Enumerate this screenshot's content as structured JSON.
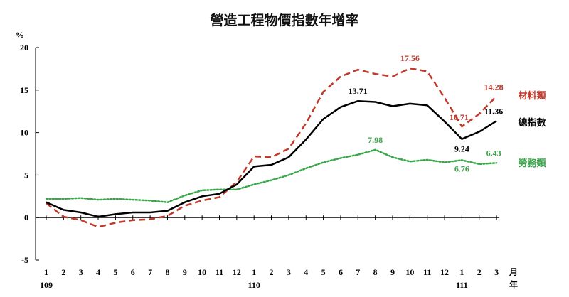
{
  "chart_data": {
    "type": "line",
    "title": "營造工程物價指數年增率",
    "ylabel": "%",
    "xlabel_unit_month": "月",
    "xlabel_unit_year": "年",
    "ylim": [
      -5,
      20
    ],
    "y_ticks": [
      "-5",
      "0",
      "5",
      "10",
      "15",
      "20"
    ],
    "y_tick_values": [
      -5,
      0,
      5,
      10,
      15,
      20
    ],
    "categories": [
      "1",
      "2",
      "3",
      "4",
      "5",
      "6",
      "7",
      "8",
      "9",
      "10",
      "11",
      "12",
      "1",
      "2",
      "3",
      "4",
      "5",
      "6",
      "7",
      "8",
      "9",
      "10",
      "11",
      "12",
      "1",
      "2",
      "3"
    ],
    "year_labels": [
      {
        "index": 0,
        "label": "109"
      },
      {
        "index": 12,
        "label": "110"
      },
      {
        "index": 24,
        "label": "111"
      }
    ],
    "series": [
      {
        "name": "材料類",
        "color": "#c0392b",
        "style": "dashed",
        "values": [
          1.7,
          0.1,
          -0.3,
          -1.1,
          -0.6,
          -0.3,
          -0.2,
          0.2,
          1.4,
          2.0,
          2.4,
          4.2,
          7.2,
          7.1,
          8.1,
          11.1,
          14.8,
          16.6,
          17.4,
          16.9,
          16.6,
          17.56,
          17.2,
          14.1,
          10.71,
          12.2,
          14.28
        ],
        "labels": [
          {
            "index": 21,
            "text": "17.56"
          },
          {
            "index": 24,
            "text": "10.71"
          },
          {
            "index": 26,
            "text": "14.28"
          }
        ]
      },
      {
        "name": "總指數",
        "color": "#000000",
        "style": "solid",
        "values": [
          1.8,
          0.9,
          0.6,
          0.1,
          0.4,
          0.6,
          0.6,
          0.8,
          1.8,
          2.5,
          2.8,
          3.9,
          6.0,
          6.2,
          7.1,
          9.2,
          11.6,
          13.0,
          13.71,
          13.6,
          13.1,
          13.4,
          13.2,
          11.3,
          9.24,
          10.1,
          11.36
        ],
        "labels": [
          {
            "index": 18,
            "text": "13.71"
          },
          {
            "index": 24,
            "text": "9.24"
          },
          {
            "index": 26,
            "text": "11.36"
          }
        ]
      },
      {
        "name": "勞務類",
        "color": "#3aa64a",
        "style": "dotted",
        "values": [
          2.2,
          2.2,
          2.3,
          2.1,
          2.2,
          2.1,
          2.0,
          1.8,
          2.6,
          3.2,
          3.3,
          3.3,
          3.9,
          4.4,
          5.0,
          5.8,
          6.5,
          7.0,
          7.4,
          7.98,
          7.1,
          6.6,
          6.8,
          6.5,
          6.76,
          6.3,
          6.43
        ],
        "labels": [
          {
            "index": 19,
            "text": "7.98"
          },
          {
            "index": 24,
            "text": "6.76"
          },
          {
            "index": 26,
            "text": "6.43"
          }
        ]
      }
    ]
  }
}
